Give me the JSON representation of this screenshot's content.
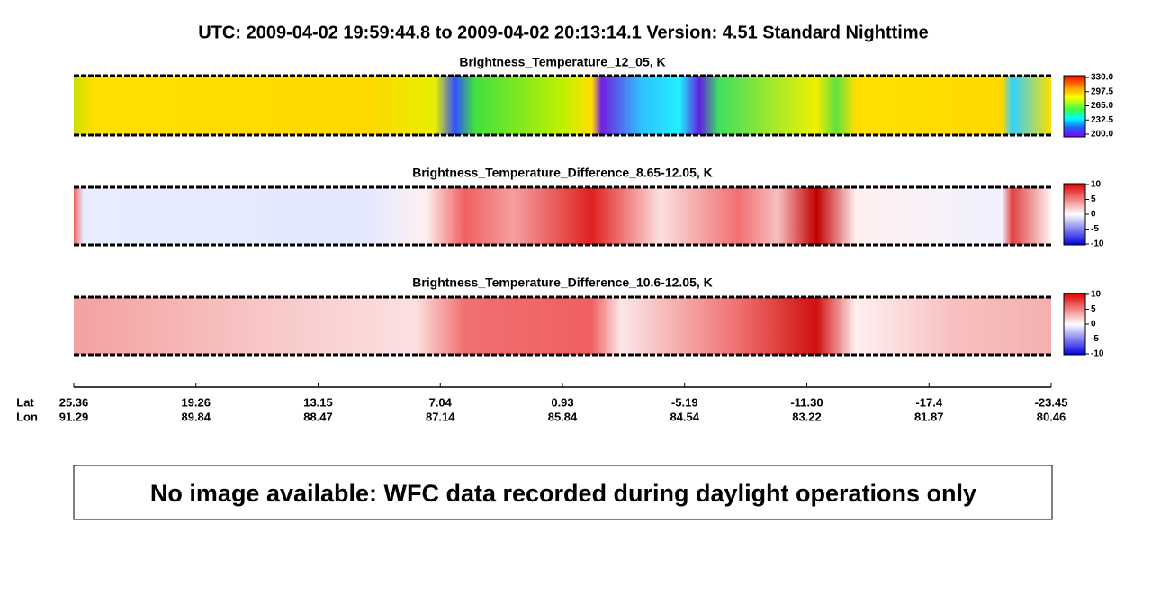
{
  "header": {
    "title": "UTC:  2009-04-02   19:59:44.8  to  2009-04-02   20:13:14.1    Version: 4.51  Standard Nighttime"
  },
  "panels": [
    {
      "title": "Brightness_Temperature_12_05, K",
      "colorbar_ticks": [
        {
          "value": 330,
          "label": "330.0"
        },
        {
          "value": 297.5,
          "label": "297.5"
        },
        {
          "value": 265,
          "label": "265.0"
        },
        {
          "value": 232.5,
          "label": "232.5"
        },
        {
          "value": 200,
          "label": "200.0"
        }
      ]
    },
    {
      "title": "Brightness_Temperature_Difference_8.65-12.05, K",
      "colorbar_ticks": [
        10,
        5,
        0,
        -5,
        -10
      ]
    },
    {
      "title": "Brightness_Temperature_Difference_10.6-12.05, K",
      "colorbar_ticks": [
        10,
        5,
        0,
        -5,
        -10
      ]
    }
  ],
  "axis": {
    "lat_label": "Lat",
    "lon_label": "Lon",
    "lat": [
      25.36,
      19.26,
      13.15,
      7.04,
      0.93,
      -5.19,
      {
        "value": -11.3,
        "label": "-11.30"
      },
      -17.4,
      -23.45
    ],
    "lon": [
      91.29,
      89.84,
      88.47,
      87.14,
      85.84,
      84.54,
      83.22,
      81.87,
      80.46
    ]
  },
  "notice": {
    "text": "No image available: WFC data recorded during daylight operations only"
  }
}
